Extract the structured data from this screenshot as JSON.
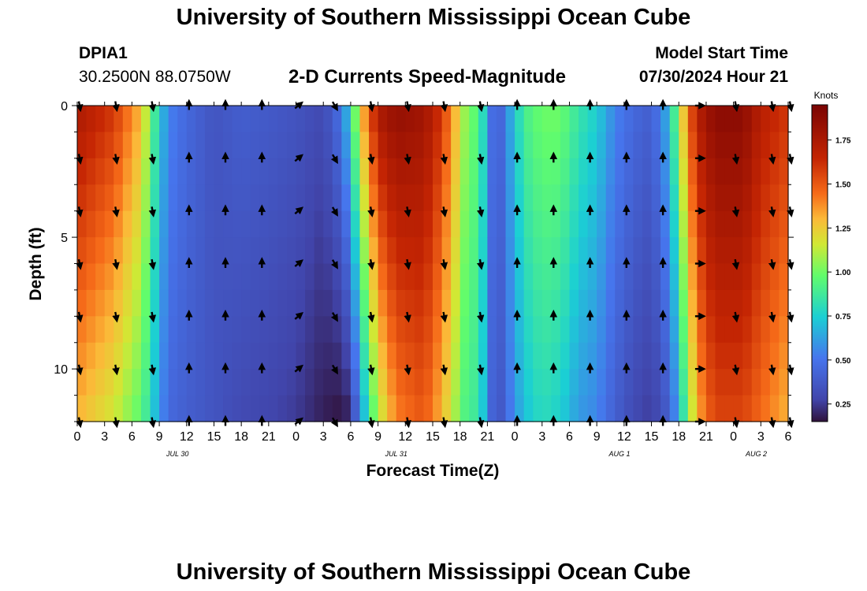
{
  "page": {
    "title_top": "University of Southern Mississippi Ocean Cube",
    "title_bottom": "University of Southern Mississippi Ocean Cube",
    "station": "DPIA1",
    "coords": "30.2500N  88.0750W",
    "plot_title": "2-D Currents Speed-Magnitude",
    "model_label": "Model Start Time",
    "model_time": "07/30/2024 Hour 21"
  },
  "chart_data": {
    "type": "heatmap",
    "title": "2-D Currents Speed-Magnitude",
    "xlabel": "Forecast Time(Z)",
    "ylabel": "Depth (ft)",
    "x_range_hours": [
      0,
      78
    ],
    "y_range_ft": [
      0,
      12
    ],
    "y_ticks": [
      0,
      5,
      10
    ],
    "x_tick_hours": [
      0,
      3,
      6,
      9,
      12,
      15,
      18,
      21,
      24,
      27,
      30,
      33,
      36,
      39,
      42,
      45,
      48,
      51,
      54,
      57,
      60,
      63,
      66,
      69,
      72,
      75,
      78
    ],
    "x_tick_labels": [
      "0",
      "3",
      "6",
      "9",
      "12",
      "15",
      "18",
      "21",
      "0",
      "3",
      "6",
      "9",
      "12",
      "15",
      "18",
      "21",
      "0",
      "3",
      "6",
      "9",
      "12",
      "15",
      "18",
      "21",
      "0",
      "3",
      "6"
    ],
    "date_labels": [
      {
        "label": "JUL 30",
        "hour": 11
      },
      {
        "label": "JUL 31",
        "hour": 35
      },
      {
        "label": "AUG 1",
        "hour": 59.5
      },
      {
        "label": "AUG 2",
        "hour": 74.5
      }
    ],
    "colorbar": {
      "label": "Knots",
      "min": 0.15,
      "max": 1.95,
      "ticks": [
        0.25,
        0.5,
        0.75,
        1.0,
        1.25,
        1.5,
        1.75
      ],
      "tick_labels": [
        "0.25",
        "0.50",
        "0.75",
        "1.00",
        "1.25",
        "1.50",
        "1.75"
      ]
    },
    "depths_ft": [
      0,
      1,
      2,
      3,
      4,
      5,
      6,
      7,
      8,
      9,
      10,
      11,
      12
    ],
    "speed_profile_hours": [
      0,
      4,
      7,
      8,
      9,
      10,
      12,
      15,
      18,
      21,
      24,
      27,
      29,
      30,
      31,
      33,
      35,
      38,
      40,
      42,
      43,
      44,
      45,
      46,
      47,
      49,
      51,
      53,
      55,
      57,
      59,
      61,
      63,
      65,
      66,
      67,
      68,
      69,
      70,
      73,
      75,
      78
    ],
    "speed_profile_surface_kt": [
      1.75,
      1.6,
      1.3,
      1.0,
      0.75,
      0.55,
      0.45,
      0.35,
      0.4,
      0.38,
      0.35,
      0.3,
      0.5,
      0.8,
      1.25,
      1.75,
      1.85,
      1.8,
      1.6,
      1.2,
      0.95,
      1.0,
      0.6,
      0.35,
      0.55,
      0.9,
      1.0,
      1.0,
      0.85,
      0.75,
      0.55,
      0.45,
      0.4,
      0.7,
      1.1,
      1.45,
      1.7,
      1.8,
      1.88,
      1.88,
      1.7,
      1.6
    ],
    "speed_profile_bottom_kt": [
      1.3,
      1.15,
      0.95,
      0.8,
      0.6,
      0.45,
      0.4,
      0.35,
      0.3,
      0.28,
      0.25,
      0.18,
      0.15,
      0.2,
      0.55,
      1.1,
      1.4,
      1.5,
      1.3,
      1.0,
      0.85,
      0.9,
      0.55,
      0.3,
      0.45,
      0.7,
      0.8,
      0.75,
      0.6,
      0.55,
      0.4,
      0.3,
      0.25,
      0.4,
      0.65,
      1.0,
      1.3,
      1.45,
      1.55,
      1.55,
      1.45,
      1.3
    ],
    "vector_hours": [
      0,
      4,
      8,
      12,
      16,
      20,
      24,
      28,
      32,
      36,
      40,
      44,
      48,
      52,
      56,
      60,
      64,
      68,
      72,
      76,
      78
    ],
    "vector_direction_deg": [
      170,
      170,
      170,
      0,
      0,
      0,
      50,
      150,
      170,
      170,
      170,
      170,
      0,
      0,
      0,
      0,
      0,
      90,
      170,
      170,
      170
    ],
    "vector_depths_ft": [
      0,
      2,
      4,
      6,
      8,
      10,
      12
    ]
  }
}
